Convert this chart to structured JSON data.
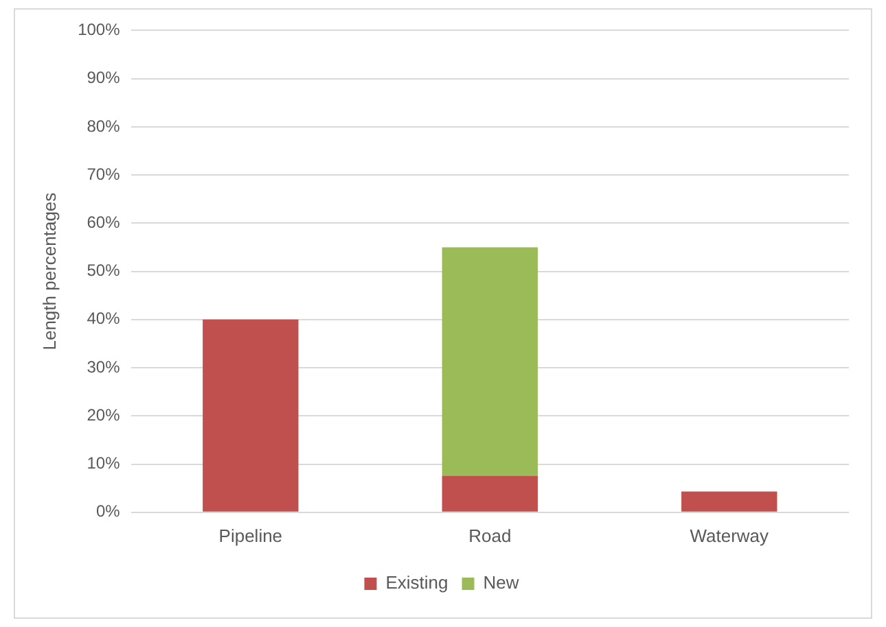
{
  "chart_data": {
    "type": "bar",
    "ylabel": "Length percentages",
    "categories": [
      "Pipeline",
      "Road",
      "Waterway"
    ],
    "stacked": true,
    "series": [
      {
        "name": "Existing",
        "color": "#c0504d",
        "values": [
          40,
          7.6,
          4.3
        ]
      },
      {
        "name": "New",
        "color": "#9bbb59",
        "values": [
          null,
          47.4,
          null
        ]
      }
    ],
    "ylim": [
      0,
      100
    ],
    "yticks": [
      {
        "value": 0,
        "label": "0%"
      },
      {
        "value": 10,
        "label": "10%"
      },
      {
        "value": 20,
        "label": "20%"
      },
      {
        "value": 30,
        "label": "30%"
      },
      {
        "value": 40,
        "label": "40%"
      },
      {
        "value": 50,
        "label": "50%"
      },
      {
        "value": 60,
        "label": "60%"
      },
      {
        "value": 70,
        "label": "70%"
      },
      {
        "value": 80,
        "label": "80%"
      },
      {
        "value": 90,
        "label": "90%"
      },
      {
        "value": 100,
        "label": "100%"
      }
    ],
    "grid": "y",
    "legend": "bottom"
  }
}
